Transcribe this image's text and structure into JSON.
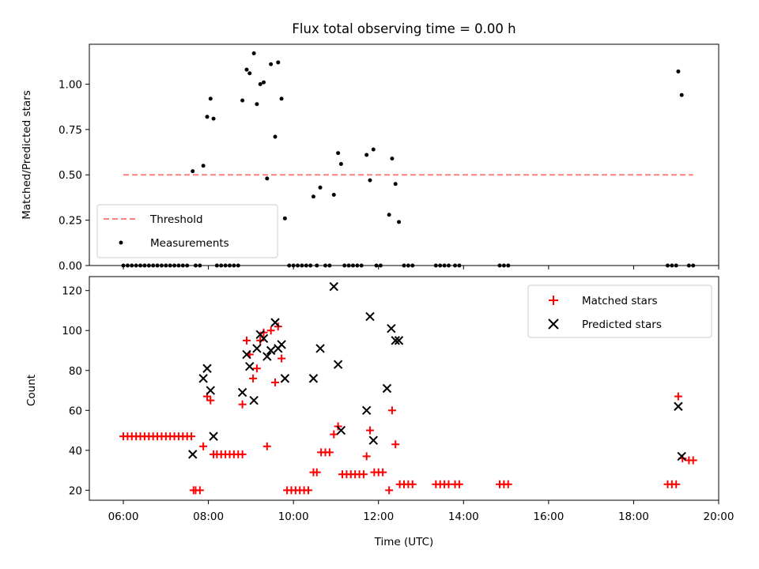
{
  "chart_data": [
    {
      "type": "scatter",
      "title": "Flux total observing time = 0.00 h",
      "ylabel": "Matched/Predicted stars",
      "xlabel": "",
      "xlim": [
        5.2,
        20.0
      ],
      "ylim": [
        0.0,
        1.22
      ],
      "yticks": [
        "0.00",
        "0.25",
        "0.50",
        "0.75",
        "1.00"
      ],
      "ytick_values": [
        0.0,
        0.25,
        0.5,
        0.75,
        1.0
      ],
      "xtick_values": [
        6,
        8,
        10,
        12,
        14,
        16,
        18,
        20
      ],
      "legend_position": "lower-left",
      "threshold": {
        "name": "Threshold",
        "value": 0.5,
        "x_start": 6.0,
        "x_end": 19.4,
        "color": "#ff7f7f"
      },
      "series": [
        {
          "name": "Measurements",
          "color": "#000000",
          "points": [
            [
              7.63,
              0.52
            ],
            [
              7.88,
              0.55
            ],
            [
              7.97,
              0.82
            ],
            [
              8.05,
              0.92
            ],
            [
              8.12,
              0.81
            ],
            [
              8.8,
              0.91
            ],
            [
              8.9,
              1.08
            ],
            [
              8.97,
              1.06
            ],
            [
              9.07,
              1.17
            ],
            [
              9.14,
              0.89
            ],
            [
              9.22,
              1.0
            ],
            [
              9.3,
              1.01
            ],
            [
              9.38,
              0.48
            ],
            [
              9.47,
              1.11
            ],
            [
              9.57,
              0.71
            ],
            [
              9.64,
              1.12
            ],
            [
              9.72,
              0.92
            ],
            [
              9.8,
              0.26
            ],
            [
              10.47,
              0.38
            ],
            [
              10.63,
              0.43
            ],
            [
              10.95,
              0.39
            ],
            [
              11.05,
              0.62
            ],
            [
              11.12,
              0.56
            ],
            [
              11.72,
              0.61
            ],
            [
              11.8,
              0.47
            ],
            [
              11.88,
              0.64
            ],
            [
              12.25,
              0.28
            ],
            [
              12.32,
              0.59
            ],
            [
              12.4,
              0.45
            ],
            [
              12.48,
              0.24
            ],
            [
              19.05,
              1.07
            ],
            [
              19.13,
              0.94
            ]
          ],
          "zero_points": [
            6.0,
            6.1,
            6.2,
            6.3,
            6.4,
            6.5,
            6.6,
            6.7,
            6.8,
            6.9,
            7.0,
            7.1,
            7.2,
            7.3,
            7.4,
            7.5,
            7.7,
            7.8,
            8.2,
            8.3,
            8.4,
            8.5,
            8.6,
            8.7,
            9.9,
            10.0,
            10.1,
            10.2,
            10.3,
            10.4,
            10.55,
            10.75,
            10.85,
            11.2,
            11.3,
            11.4,
            11.5,
            11.6,
            11.95,
            12.05,
            12.6,
            12.7,
            12.8,
            13.35,
            13.45,
            13.55,
            13.65,
            13.8,
            13.9,
            14.85,
            14.95,
            15.05,
            18.8,
            18.9,
            19.0,
            19.3,
            19.4
          ]
        }
      ]
    },
    {
      "type": "scatter",
      "title": "",
      "ylabel": "Count",
      "xlabel": "Time (UTC)",
      "xlim": [
        5.2,
        20.0
      ],
      "ylim": [
        15,
        127
      ],
      "yticks": [
        "20",
        "40",
        "60",
        "80",
        "100",
        "120"
      ],
      "ytick_values": [
        20,
        40,
        60,
        80,
        100,
        120
      ],
      "xticks": [
        "06:00",
        "08:00",
        "10:00",
        "12:00",
        "14:00",
        "16:00",
        "18:00",
        "20:00"
      ],
      "xtick_values": [
        6,
        8,
        10,
        12,
        14,
        16,
        18,
        20
      ],
      "legend_position": "top-right",
      "series": [
        {
          "name": "Matched stars",
          "marker": "plus",
          "color": "#ff0000",
          "points": [
            [
              6.0,
              47
            ],
            [
              6.1,
              47
            ],
            [
              6.2,
              47
            ],
            [
              6.3,
              47
            ],
            [
              6.4,
              47
            ],
            [
              6.5,
              47
            ],
            [
              6.6,
              47
            ],
            [
              6.7,
              47
            ],
            [
              6.8,
              47
            ],
            [
              6.9,
              47
            ],
            [
              7.0,
              47
            ],
            [
              7.1,
              47
            ],
            [
              7.2,
              47
            ],
            [
              7.3,
              47
            ],
            [
              7.4,
              47
            ],
            [
              7.5,
              47
            ],
            [
              7.6,
              47
            ],
            [
              7.65,
              20
            ],
            [
              7.7,
              20
            ],
            [
              7.8,
              20
            ],
            [
              7.88,
              42
            ],
            [
              7.97,
              67
            ],
            [
              8.05,
              65
            ],
            [
              8.12,
              38
            ],
            [
              8.2,
              38
            ],
            [
              8.3,
              38
            ],
            [
              8.4,
              38
            ],
            [
              8.5,
              38
            ],
            [
              8.6,
              38
            ],
            [
              8.7,
              38
            ],
            [
              8.8,
              38
            ],
            [
              8.8,
              63
            ],
            [
              8.9,
              95
            ],
            [
              8.97,
              88
            ],
            [
              9.05,
              76
            ],
            [
              9.14,
              81
            ],
            [
              9.22,
              95
            ],
            [
              9.3,
              99
            ],
            [
              9.38,
              42
            ],
            [
              9.47,
              100
            ],
            [
              9.57,
              74
            ],
            [
              9.64,
              102
            ],
            [
              9.72,
              86
            ],
            [
              9.85,
              20
            ],
            [
              9.95,
              20
            ],
            [
              10.05,
              20
            ],
            [
              10.15,
              20
            ],
            [
              10.25,
              20
            ],
            [
              10.35,
              20
            ],
            [
              10.47,
              29
            ],
            [
              10.55,
              29
            ],
            [
              10.65,
              39
            ],
            [
              10.75,
              39
            ],
            [
              10.85,
              39
            ],
            [
              10.95,
              48
            ],
            [
              11.05,
              52
            ],
            [
              11.15,
              28
            ],
            [
              11.25,
              28
            ],
            [
              11.35,
              28
            ],
            [
              11.45,
              28
            ],
            [
              11.55,
              28
            ],
            [
              11.65,
              28
            ],
            [
              11.72,
              37
            ],
            [
              11.8,
              50
            ],
            [
              11.9,
              29
            ],
            [
              12.0,
              29
            ],
            [
              12.1,
              29
            ],
            [
              12.25,
              20
            ],
            [
              12.32,
              60
            ],
            [
              12.4,
              43
            ],
            [
              12.5,
              23
            ],
            [
              12.6,
              23
            ],
            [
              12.7,
              23
            ],
            [
              12.8,
              23
            ],
            [
              13.35,
              23
            ],
            [
              13.45,
              23
            ],
            [
              13.55,
              23
            ],
            [
              13.65,
              23
            ],
            [
              13.8,
              23
            ],
            [
              13.9,
              23
            ],
            [
              14.85,
              23
            ],
            [
              14.95,
              23
            ],
            [
              15.05,
              23
            ],
            [
              18.8,
              23
            ],
            [
              18.9,
              23
            ],
            [
              19.0,
              23
            ],
            [
              19.05,
              67
            ],
            [
              19.15,
              36
            ],
            [
              19.3,
              35
            ],
            [
              19.4,
              35
            ]
          ]
        },
        {
          "name": "Predicted stars",
          "marker": "x",
          "color": "#000000",
          "points": [
            [
              7.63,
              38
            ],
            [
              7.88,
              76
            ],
            [
              7.97,
              81
            ],
            [
              8.05,
              70
            ],
            [
              8.12,
              47
            ],
            [
              8.8,
              69
            ],
            [
              8.9,
              88
            ],
            [
              8.97,
              82
            ],
            [
              9.07,
              65
            ],
            [
              9.14,
              91
            ],
            [
              9.22,
              98
            ],
            [
              9.3,
              96
            ],
            [
              9.38,
              87
            ],
            [
              9.47,
              90
            ],
            [
              9.57,
              104
            ],
            [
              9.64,
              91
            ],
            [
              9.72,
              93
            ],
            [
              9.8,
              76
            ],
            [
              10.47,
              76
            ],
            [
              10.63,
              91
            ],
            [
              10.95,
              122
            ],
            [
              11.05,
              83
            ],
            [
              11.12,
              50
            ],
            [
              11.72,
              60
            ],
            [
              11.8,
              107
            ],
            [
              11.88,
              45
            ],
            [
              12.2,
              71
            ],
            [
              12.3,
              101
            ],
            [
              12.4,
              95
            ],
            [
              12.48,
              95
            ],
            [
              19.05,
              62
            ],
            [
              19.13,
              37
            ]
          ]
        }
      ]
    }
  ]
}
